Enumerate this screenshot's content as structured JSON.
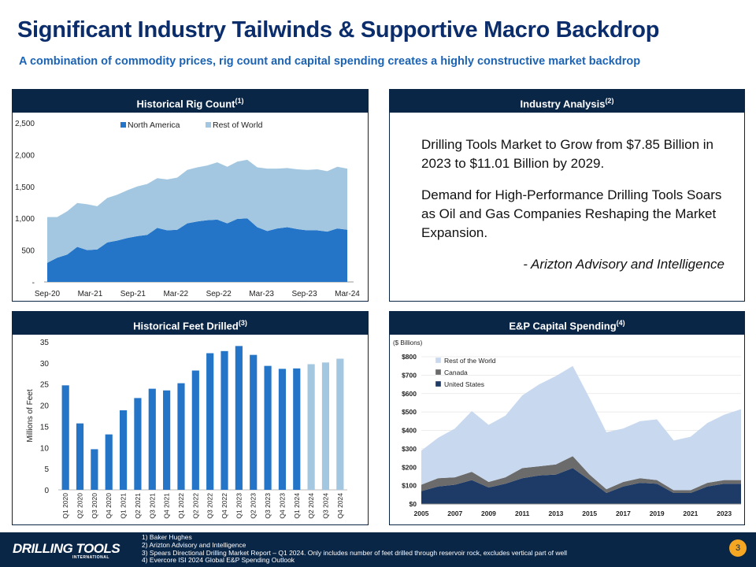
{
  "header": {
    "title": "Significant Industry Tailwinds & Supportive Macro Backdrop",
    "subtitle": "A combination of commodity prices, rig count and capital spending creates a highly constructive market backdrop"
  },
  "colors": {
    "navy": "#0a2647",
    "blue": "#2474c7",
    "light_blue": "#a3c7e0",
    "dark_navy": "#1e3a66",
    "gray": "#6b6b6b",
    "pale_blue": "#c7d8ef",
    "accent": "#f5a623"
  },
  "panels": {
    "rig": {
      "title": "Historical Rig Count",
      "sup": "(1)"
    },
    "industry": {
      "title": "Industry Analysis",
      "sup": "(2)"
    },
    "feet": {
      "title": "Historical Feet Drilled",
      "sup": "(3)"
    },
    "capex": {
      "title": "E&P Capital Spending",
      "sup": "(4)"
    }
  },
  "industry_analysis": {
    "paragraph1": "Drilling Tools Market to Grow from $7.85 Billion in 2023 to $11.01 Billion by 2029.",
    "paragraph2": "Demand for High-Performance Drilling Tools Soars as Oil and Gas Companies Reshaping the Market Expansion.",
    "attribution": "- Arizton Advisory and Intelligence"
  },
  "chart_data": [
    {
      "type": "area",
      "stacked": true,
      "x_tick_labels": [
        "Sep-20",
        "Mar-21",
        "Sep-21",
        "Mar-22",
        "Sep-22",
        "Mar-23",
        "Sep-23",
        "Mar-24"
      ],
      "y_tick_labels": [
        "-",
        "500",
        "1,000",
        "1,500",
        "2,000",
        "2,500"
      ],
      "ylim": [
        0,
        2500
      ],
      "legend_position": "top",
      "series": [
        {
          "name": "North America",
          "color": "#2474c7",
          "values": [
            300,
            380,
            430,
            550,
            500,
            510,
            620,
            650,
            690,
            720,
            740,
            850,
            810,
            820,
            920,
            950,
            970,
            980,
            920,
            990,
            1000,
            860,
            800,
            840,
            860,
            830,
            810,
            810,
            790,
            840,
            820
          ]
        },
        {
          "name": "Rest of World",
          "color": "#a3c7e0",
          "values": [
            720,
            640,
            680,
            690,
            720,
            680,
            700,
            720,
            750,
            780,
            800,
            780,
            800,
            820,
            840,
            850,
            860,
            900,
            890,
            900,
            920,
            940,
            980,
            940,
            930,
            940,
            950,
            960,
            950,
            970,
            960
          ]
        }
      ]
    },
    {
      "type": "bar",
      "ylabel": "Millions of Feet",
      "ylim": [
        0,
        35
      ],
      "y_tick_labels": [
        "0",
        "5",
        "10",
        "15",
        "20",
        "25",
        "30",
        "35"
      ],
      "categories": [
        "Q1 2020",
        "Q2 2020",
        "Q3 2020",
        "Q4 2020",
        "Q1 2021",
        "Q2 2021",
        "Q3 2021",
        "Q4 2021",
        "Q1 2022",
        "Q2 2022",
        "Q3 2022",
        "Q4 2022",
        "Q1 2023",
        "Q2 2023",
        "Q3 2023",
        "Q4 2023",
        "Q1 2024",
        "Q2 2024",
        "Q3 2024",
        "Q4 2024"
      ],
      "values": [
        24.7,
        15.7,
        9.6,
        13.1,
        18.8,
        21.7,
        23.9,
        23.5,
        25.2,
        28.2,
        32.3,
        32.8,
        34.0,
        31.9,
        29.3,
        28.6,
        28.7,
        29.7,
        30.1,
        31.0
      ],
      "colors_per_bar": [
        "#2474c7",
        "#2474c7",
        "#2474c7",
        "#2474c7",
        "#2474c7",
        "#2474c7",
        "#2474c7",
        "#2474c7",
        "#2474c7",
        "#2474c7",
        "#2474c7",
        "#2474c7",
        "#2474c7",
        "#2474c7",
        "#2474c7",
        "#2474c7",
        "#2474c7",
        "#a3c7e0",
        "#a3c7e0",
        "#a3c7e0"
      ]
    },
    {
      "type": "area",
      "stacked": true,
      "unit_label": "($ Billions)",
      "x": [
        2005,
        2006,
        2007,
        2008,
        2009,
        2010,
        2011,
        2012,
        2013,
        2014,
        2015,
        2016,
        2017,
        2018,
        2019,
        2020,
        2021,
        2022,
        2023,
        2024
      ],
      "x_tick_labels": [
        "2005",
        "2007",
        "2009",
        "2011",
        "2013",
        "2015",
        "2017",
        "2019",
        "2021",
        "2023"
      ],
      "y_tick_labels": [
        "$0",
        "$100",
        "$200",
        "$300",
        "$400",
        "$500",
        "$600",
        "$700",
        "$800"
      ],
      "ylim": [
        0,
        800
      ],
      "legend_position": "top-left",
      "series": [
        {
          "name": "United States",
          "color": "#1e3a66",
          "values": [
            70,
            95,
            105,
            130,
            90,
            110,
            140,
            155,
            160,
            195,
            130,
            60,
            95,
            115,
            110,
            60,
            60,
            95,
            110,
            110
          ]
        },
        {
          "name": "Canada",
          "color": "#6b6b6b",
          "values": [
            35,
            45,
            40,
            45,
            30,
            35,
            55,
            50,
            55,
            65,
            30,
            20,
            25,
            25,
            20,
            15,
            15,
            20,
            20,
            20
          ]
        },
        {
          "name": "Rest of the World",
          "color": "#c7d8ef",
          "values": [
            185,
            220,
            265,
            330,
            310,
            335,
            395,
            445,
            480,
            490,
            415,
            310,
            290,
            310,
            330,
            270,
            290,
            325,
            355,
            385
          ]
        }
      ]
    }
  ],
  "footer": {
    "logo": "DRILLING TOOLS",
    "logo_sub": "INTERNATIONAL",
    "notes": [
      "1) Baker Hughes",
      "2) Arizton Advisory and Intelligence",
      "3) Spears Directional Drilling Market Report – Q1 2024. Only includes number of feet drilled through reservoir rock, excludes vertical part of well",
      "4) Evercore ISI 2024 Global E&P Spending Outlook"
    ],
    "page_number": "3"
  }
}
